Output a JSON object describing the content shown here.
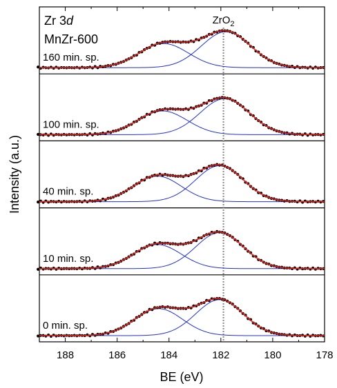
{
  "chart_data": {
    "type": "line",
    "title_line1_prefix": "Zr 3",
    "title_line1_italic": "d",
    "title_line2": "MnZr-600",
    "xlabel": "BE (eV)",
    "ylabel": "Intensity (a.u.)",
    "x_reversed": true,
    "xlim": [
      189,
      178
    ],
    "xticks": [
      "188",
      "186",
      "184",
      "182",
      "180",
      "178"
    ],
    "reference_line": {
      "x": 181.9,
      "label_main": "ZrO",
      "label_sub": "2",
      "style": "dotted",
      "color": "#888888"
    },
    "colors": {
      "experimental": "#000000",
      "fit": "#e8201c",
      "components": "#1f2fd6"
    },
    "panels": [
      {
        "label": "160 min. sp.",
        "baseline": 0.0,
        "peak_high": {
          "center": 181.8,
          "height": 1.0,
          "sigma": 0.95
        },
        "peak_low": {
          "center": 184.2,
          "height": 0.67,
          "sigma": 0.95
        }
      },
      {
        "label": "100 min. sp.",
        "baseline": 0.0,
        "peak_high": {
          "center": 181.85,
          "height": 1.0,
          "sigma": 0.95
        },
        "peak_low": {
          "center": 184.25,
          "height": 0.66,
          "sigma": 0.95
        }
      },
      {
        "label": "40 min. sp.",
        "baseline": 0.0,
        "peak_high": {
          "center": 182.05,
          "height": 1.0,
          "sigma": 0.92
        },
        "peak_low": {
          "center": 184.45,
          "height": 0.71,
          "sigma": 0.92
        }
      },
      {
        "label": "10 min. sp.",
        "baseline": 0.0,
        "peak_high": {
          "center": 182.05,
          "height": 1.0,
          "sigma": 0.92
        },
        "peak_low": {
          "center": 184.45,
          "height": 0.67,
          "sigma": 0.92
        }
      },
      {
        "label": "0 min. sp.",
        "baseline": 0.0,
        "peak_high": {
          "center": 182.05,
          "height": 1.0,
          "sigma": 0.92
        },
        "peak_low": {
          "center": 184.4,
          "height": 0.75,
          "sigma": 0.92
        }
      }
    ],
    "series": [
      {
        "name": "",
        "role": "experimental",
        "marker": "circle"
      },
      {
        "name": "",
        "role": "fit"
      },
      {
        "name": "",
        "role": "components"
      }
    ]
  }
}
